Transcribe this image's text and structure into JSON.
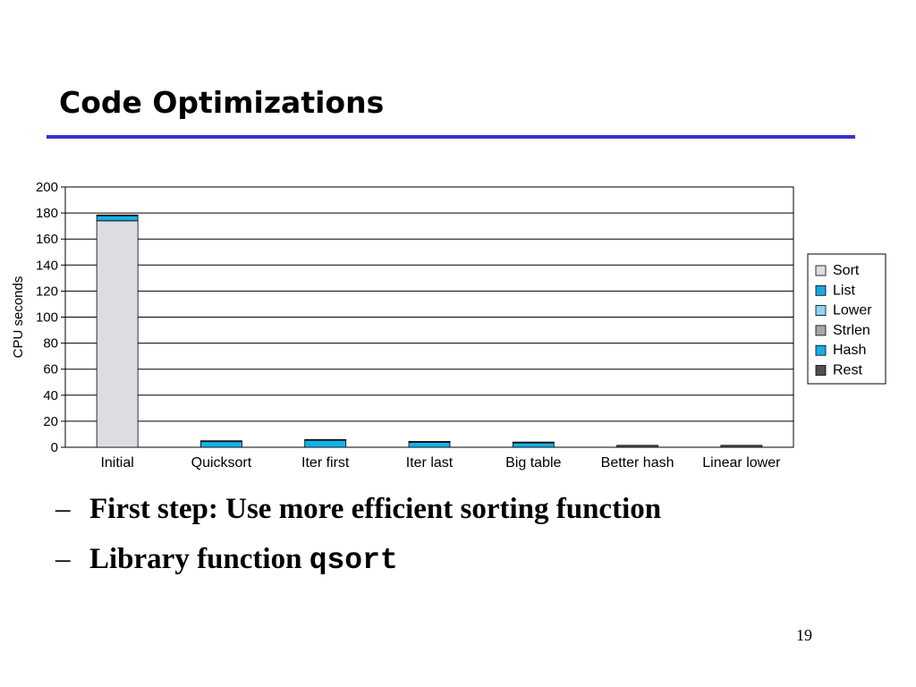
{
  "slide": {
    "title": "Code Optimizations",
    "bullets": [
      {
        "dash": "–",
        "text": "First step: Use more efficient sorting function",
        "code": ""
      },
      {
        "dash": "–",
        "text": "Library function ",
        "code": "qsort"
      }
    ],
    "page_number": "19"
  },
  "colors": {
    "title_rule": "#3535c8",
    "Sort": "#dcdde0",
    "List": "#1ba6e0",
    "Lower": "#8fd3f2",
    "Strlen": "#a6a6a6",
    "Hash": "#15b0e6",
    "Rest": "#505050"
  },
  "chart_data": {
    "type": "bar",
    "stacked": true,
    "categories": [
      "Initial",
      "Quicksort",
      "Iter first",
      "Iter last",
      "Big table",
      "Better hash",
      "Linear lower"
    ],
    "series": [
      {
        "name": "Sort",
        "values": [
          174,
          0,
          0,
          0,
          0,
          0,
          0
        ]
      },
      {
        "name": "List",
        "values": [
          0,
          0,
          0,
          0,
          0,
          0,
          0
        ]
      },
      {
        "name": "Lower",
        "values": [
          0,
          0,
          0,
          0,
          0,
          0,
          0
        ]
      },
      {
        "name": "Strlen",
        "values": [
          0,
          0,
          0,
          0,
          0,
          0,
          0
        ]
      },
      {
        "name": "Hash",
        "values": [
          4,
          4.5,
          5.5,
          4,
          3.5,
          0,
          0
        ]
      },
      {
        "name": "Rest",
        "values": [
          0.5,
          0.5,
          0.5,
          0.5,
          0.5,
          1.5,
          1.5
        ]
      }
    ],
    "ylabel": "CPU seconds",
    "xlabel": "",
    "ylim": [
      0,
      200
    ],
    "yticks": [
      0,
      20,
      40,
      60,
      80,
      100,
      120,
      140,
      160,
      180,
      200
    ],
    "grid": "horizontal",
    "legend": [
      "Sort",
      "List",
      "Lower",
      "Strlen",
      "Hash",
      "Rest"
    ],
    "legend_position": "right"
  }
}
